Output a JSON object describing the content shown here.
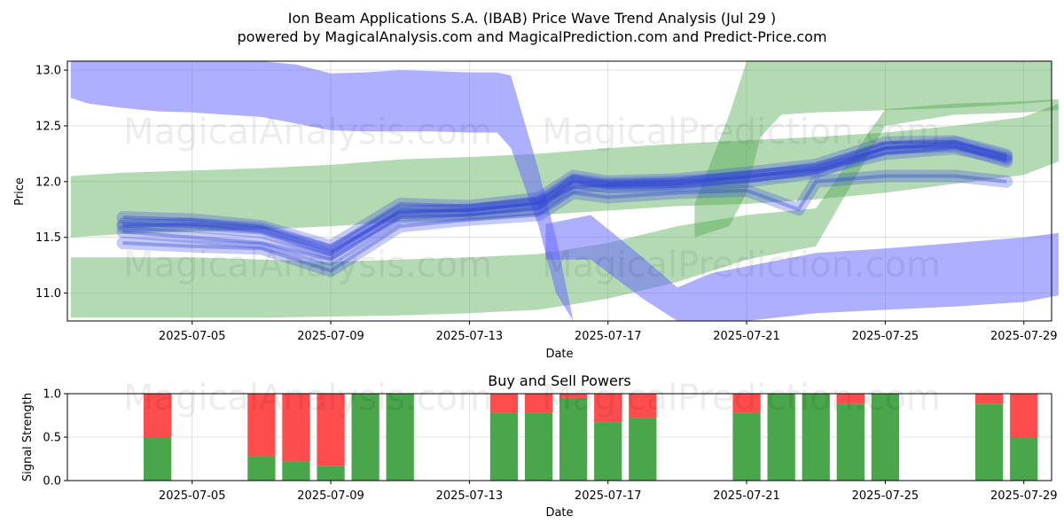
{
  "title": "Ion Beam Applications S.A. (IBAB) Price Wave Trend Analysis (Jul 29 )",
  "subtitle": "powered by MagicalAnalysis.com and MagicalPrediction.com and Predict-Price.com",
  "watermarks": [
    "MagicalAnalysis.com",
    "MagicalPrediction.com"
  ],
  "colors": {
    "green_band": "#4ca64c",
    "blue_band": "#6666ff",
    "buy": "#4aa64a",
    "sell": "#ff4d4d",
    "grid": "#d9d9d9"
  },
  "chart_data": [
    {
      "type": "area",
      "name": "price-wave",
      "xlabel": "Date",
      "ylabel": "Price",
      "xlim": [
        -1.6,
        26.8
      ],
      "ylim": [
        10.75,
        13.08
      ],
      "yticks": [
        11.0,
        11.5,
        12.0,
        12.5,
        13.0
      ],
      "ytick_labels": [
        "11.0",
        "11.5",
        "12.0",
        "12.5",
        "13.0"
      ],
      "xticks": [
        2,
        6,
        10,
        14,
        18,
        22,
        26
      ],
      "xtick_labels": [
        "2025-07-05",
        "2025-07-09",
        "2025-07-13",
        "2025-07-17",
        "2025-07-21",
        "2025-07-25",
        "2025-07-29"
      ],
      "green_bands": [
        {
          "x": [
            -1.5,
            0,
            2,
            4,
            6,
            8,
            10,
            12,
            14,
            16,
            18,
            20,
            22,
            24,
            26,
            27
          ],
          "upper": [
            12.05,
            12.08,
            12.1,
            12.12,
            12.15,
            12.2,
            12.22,
            12.25,
            12.3,
            12.34,
            12.37,
            12.4,
            12.44,
            12.5,
            12.58,
            12.7
          ],
          "lower": [
            11.5,
            11.53,
            11.55,
            11.57,
            11.6,
            11.64,
            11.66,
            11.7,
            11.74,
            11.78,
            11.8,
            11.84,
            11.9,
            11.98,
            12.06,
            12.18
          ]
        },
        {
          "x": [
            -1.5,
            0,
            2,
            4,
            6,
            8,
            10,
            12,
            14,
            16,
            17,
            18,
            20,
            22,
            24,
            26,
            27
          ],
          "upper": [
            11.32,
            11.32,
            11.32,
            11.3,
            11.28,
            11.3,
            11.32,
            11.35,
            11.45,
            11.6,
            11.65,
            11.7,
            11.76,
            12.65,
            12.7,
            12.72,
            12.74
          ],
          "lower": [
            10.78,
            10.78,
            10.78,
            10.78,
            10.79,
            10.8,
            10.82,
            10.85,
            10.95,
            11.1,
            11.2,
            11.3,
            11.42,
            12.5,
            12.6,
            12.62,
            12.64
          ]
        },
        {
          "x": [
            16.5,
            17.5,
            18,
            18.4,
            19,
            20,
            22,
            24,
            26,
            26.8
          ],
          "upper": [
            11.8,
            12.6,
            13.08,
            13.08,
            13.08,
            13.08,
            13.08,
            13.08,
            13.08,
            13.08
          ],
          "lower": [
            11.5,
            11.6,
            11.9,
            12.4,
            12.6,
            12.62,
            12.64,
            12.66,
            12.7,
            12.72
          ]
        }
      ],
      "blue_bands": [
        {
          "x": [
            -1.5,
            -1,
            0,
            1,
            2,
            3,
            4,
            5,
            6,
            7,
            8,
            9,
            10,
            10.8
          ],
          "upper": [
            13.2,
            13.15,
            13.1,
            13.08,
            13.1,
            13.12,
            13.1,
            13.05,
            12.97,
            12.98,
            13.0,
            12.99,
            12.98,
            12.98
          ],
          "lower": [
            12.75,
            12.7,
            12.66,
            12.63,
            12.62,
            12.6,
            12.58,
            12.52,
            12.46,
            12.45,
            12.45,
            12.45,
            12.44,
            12.44
          ]
        },
        {
          "x": [
            10.8,
            11.2,
            12.0,
            12.5,
            13.0,
            13.5,
            14.0
          ],
          "upper": [
            12.98,
            12.95,
            12.1,
            11.5,
            10.7,
            10.6,
            10.6
          ],
          "lower": [
            12.44,
            12.3,
            11.6,
            11.0,
            10.6,
            10.55,
            10.55
          ]
        },
        {
          "x": [
            12.2,
            13.5,
            15,
            16,
            17,
            18,
            20,
            22,
            24,
            26,
            27
          ],
          "upper": [
            11.62,
            11.7,
            11.32,
            11.05,
            11.18,
            11.24,
            11.36,
            11.4,
            11.45,
            11.5,
            11.54
          ],
          "lower": [
            11.3,
            11.3,
            10.95,
            10.7,
            10.75,
            10.72,
            10.82,
            10.85,
            10.88,
            10.92,
            10.98
          ]
        }
      ],
      "wave_lines": [
        {
          "x": [
            0,
            2,
            4,
            6,
            8,
            10,
            12,
            13,
            14,
            16,
            18,
            20,
            22,
            24,
            25.5
          ],
          "y": [
            11.6,
            11.62,
            11.58,
            11.38,
            11.72,
            11.75,
            11.8,
            11.95,
            11.97,
            11.98,
            12.05,
            12.1,
            12.25,
            12.3,
            12.2
          ]
        },
        {
          "x": [
            0,
            2,
            4,
            6,
            8,
            10,
            12,
            13,
            14,
            16,
            18,
            20,
            22,
            24,
            25.5
          ],
          "y": [
            11.55,
            11.5,
            11.45,
            11.3,
            11.68,
            11.7,
            11.76,
            12.0,
            11.95,
            11.96,
            12.0,
            12.08,
            12.3,
            12.35,
            12.22
          ]
        },
        {
          "x": [
            0,
            2,
            4,
            6,
            8,
            10,
            12,
            13,
            14,
            16,
            18,
            20,
            22,
            24,
            25.5
          ],
          "y": [
            11.68,
            11.66,
            11.6,
            11.42,
            11.8,
            11.78,
            11.85,
            12.05,
            12.0,
            12.02,
            12.08,
            12.15,
            12.35,
            12.36,
            12.24
          ]
        },
        {
          "x": [
            0,
            2,
            4,
            6,
            8,
            10,
            12,
            13,
            14,
            16,
            18,
            19.5,
            20,
            22,
            24,
            25.5
          ],
          "y": [
            11.45,
            11.42,
            11.4,
            11.2,
            11.6,
            11.66,
            11.7,
            11.9,
            11.86,
            11.9,
            11.92,
            11.75,
            12.0,
            12.05,
            12.05,
            12.0
          ]
        },
        {
          "x": [
            0,
            2,
            4,
            6,
            8,
            10,
            12,
            13,
            14,
            16,
            18,
            20,
            22,
            24,
            25.5
          ],
          "y": [
            11.62,
            11.6,
            11.55,
            11.35,
            11.74,
            11.74,
            11.82,
            12.02,
            11.98,
            12.0,
            12.04,
            12.12,
            12.3,
            12.32,
            12.18
          ]
        }
      ]
    },
    {
      "type": "bar",
      "name": "buy-sell-powers",
      "title": "Buy and Sell Powers",
      "xlabel": "Date",
      "ylabel": "Signal Strength",
      "xlim": [
        -1.6,
        26.8
      ],
      "ylim": [
        0,
        1
      ],
      "yticks": [
        0.0,
        0.5,
        1.0
      ],
      "ytick_labels": [
        "0.0",
        "0.5",
        "1.0"
      ],
      "xticks": [
        2,
        6,
        10,
        14,
        18,
        22,
        26
      ],
      "xtick_labels": [
        "2025-07-05",
        "2025-07-09",
        "2025-07-13",
        "2025-07-17",
        "2025-07-21",
        "2025-07-25",
        "2025-07-29"
      ],
      "x": [
        1,
        4,
        5,
        6,
        7,
        8,
        11,
        12,
        13,
        14,
        15,
        18,
        19,
        20,
        21,
        22,
        25,
        26
      ],
      "buy": [
        0.5,
        0.28,
        0.22,
        0.17,
        1.0,
        1.0,
        0.78,
        0.78,
        0.95,
        0.67,
        0.72,
        0.78,
        1.0,
        1.0,
        0.88,
        1.0,
        0.88,
        0.5
      ]
    }
  ]
}
